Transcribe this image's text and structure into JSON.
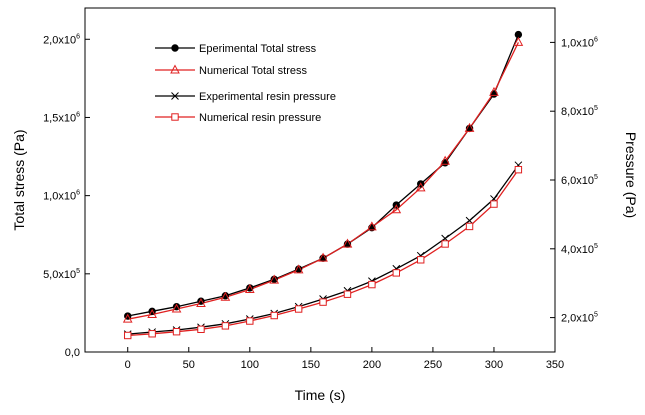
{
  "chart_data": {
    "type": "line",
    "xlabel": "Time (s)",
    "ylabel_left": "Total stress (Pa)",
    "ylabel_right": "Pressure (Pa)",
    "xlim": [
      -35,
      350
    ],
    "ylim_left": [
      0,
      2200000
    ],
    "ylim_right": [
      100000,
      1100000
    ],
    "x_ticks": [
      0,
      50,
      100,
      150,
      200,
      250,
      300,
      350
    ],
    "x_tick_labels": [
      "0",
      "50",
      "100",
      "150",
      "200",
      "250",
      "300",
      "350"
    ],
    "left_ticks": [
      {
        "value": 0,
        "mantissa": "0,0",
        "exp": ""
      },
      {
        "value": 500000,
        "mantissa": "5,0x10",
        "exp": "5"
      },
      {
        "value": 1000000,
        "mantissa": "1,0x10",
        "exp": "6"
      },
      {
        "value": 1500000,
        "mantissa": "1,5x10",
        "exp": "6"
      },
      {
        "value": 2000000,
        "mantissa": "2,0x10",
        "exp": "6"
      }
    ],
    "right_ticks": [
      {
        "value": 200000,
        "mantissa": "2,0x10",
        "exp": "5"
      },
      {
        "value": 400000,
        "mantissa": "4,0x10",
        "exp": "5"
      },
      {
        "value": 600000,
        "mantissa": "6,0x10",
        "exp": "5"
      },
      {
        "value": 800000,
        "mantissa": "8,0x10",
        "exp": "5"
      },
      {
        "value": 1000000,
        "mantissa": "1,0x10",
        "exp": "6"
      }
    ],
    "x": [
      0,
      20,
      40,
      60,
      80,
      100,
      120,
      140,
      160,
      180,
      200,
      220,
      240,
      260,
      280,
      300,
      320
    ],
    "series": [
      {
        "name": "Eperimental Total stress",
        "axis": "left",
        "color": "#000000",
        "marker": "filled-circle",
        "values": [
          230000,
          260000,
          290000,
          325000,
          360000,
          410000,
          465000,
          530000,
          600000,
          690000,
          795000,
          940000,
          1075000,
          1210000,
          1430000,
          1650000,
          2030000
        ]
      },
      {
        "name": "Numerical Total stress",
        "axis": "left",
        "color": "#e02020",
        "marker": "triangle",
        "values": [
          210000,
          240000,
          275000,
          310000,
          350000,
          400000,
          460000,
          525000,
          600000,
          690000,
          800000,
          910000,
          1050000,
          1220000,
          1430000,
          1660000,
          1980000
        ]
      },
      {
        "name": "Experimental resin pressure",
        "axis": "right",
        "color": "#000000",
        "marker": "cross",
        "values": [
          152000,
          158000,
          164000,
          172000,
          182000,
          196000,
          212000,
          232000,
          254000,
          278000,
          306000,
          342000,
          380000,
          430000,
          482000,
          545000,
          643000
        ]
      },
      {
        "name": "Numerical resin pressure",
        "axis": "right",
        "color": "#e02020",
        "marker": "open-square",
        "values": [
          148000,
          153000,
          159000,
          166000,
          176000,
          190000,
          206000,
          225000,
          245000,
          268000,
          296000,
          330000,
          368000,
          414000,
          465000,
          530000,
          630000
        ]
      }
    ]
  }
}
